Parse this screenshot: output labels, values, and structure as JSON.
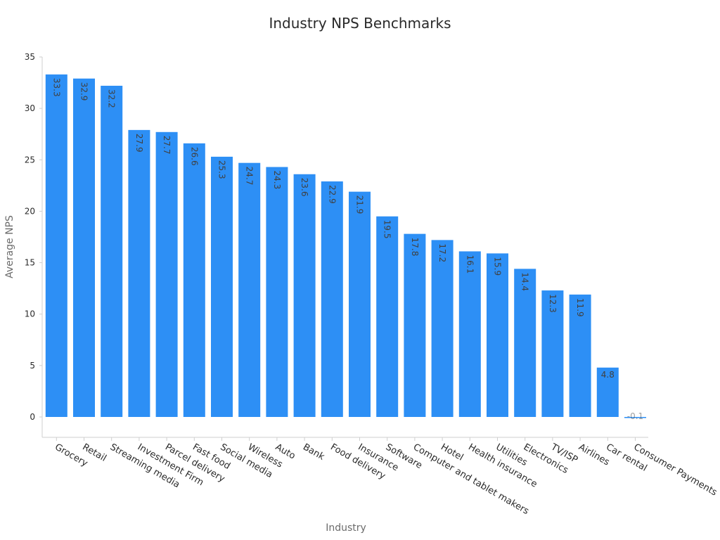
{
  "chart_data": {
    "type": "bar",
    "title": "Industry NPS Benchmarks",
    "xlabel": "Industry",
    "ylabel": "Average NPS",
    "ylim": [
      0,
      35
    ],
    "yticks": [
      0,
      5,
      10,
      15,
      20,
      25,
      30,
      35
    ],
    "grid": false,
    "bar_color": "#2d8ff5",
    "categories": [
      "Grocery",
      "Retail",
      "Streaming media",
      "Investment Firm",
      "Parcel delivery",
      "Fast food",
      "Social media",
      "Wireless",
      "Auto",
      "Bank",
      "Food delivery",
      "Insurance",
      "Software",
      "Computer and tablet makers",
      "Hotel",
      "Health insurance",
      "Utilities",
      "Electronics",
      "TV/ISP",
      "Airlines",
      "Car rental",
      "Consumer Payments"
    ],
    "values": [
      33.3,
      32.9,
      32.2,
      27.9,
      27.7,
      26.6,
      25.3,
      24.7,
      24.3,
      23.6,
      22.9,
      21.9,
      19.5,
      17.8,
      17.2,
      16.1,
      15.9,
      14.4,
      12.3,
      11.9,
      4.8,
      -0.1
    ],
    "data_labels": [
      "33.3",
      "32.9",
      "32.2",
      "27.9",
      "27.7",
      "26.6",
      "25.3",
      "24.7",
      "24.3",
      "23.6",
      "22.9",
      "21.9",
      "19.5",
      "17.8",
      "17.2",
      "16.1",
      "15.9",
      "14.4",
      "12.3",
      "11.9",
      "4.8",
      "-0.1"
    ]
  }
}
